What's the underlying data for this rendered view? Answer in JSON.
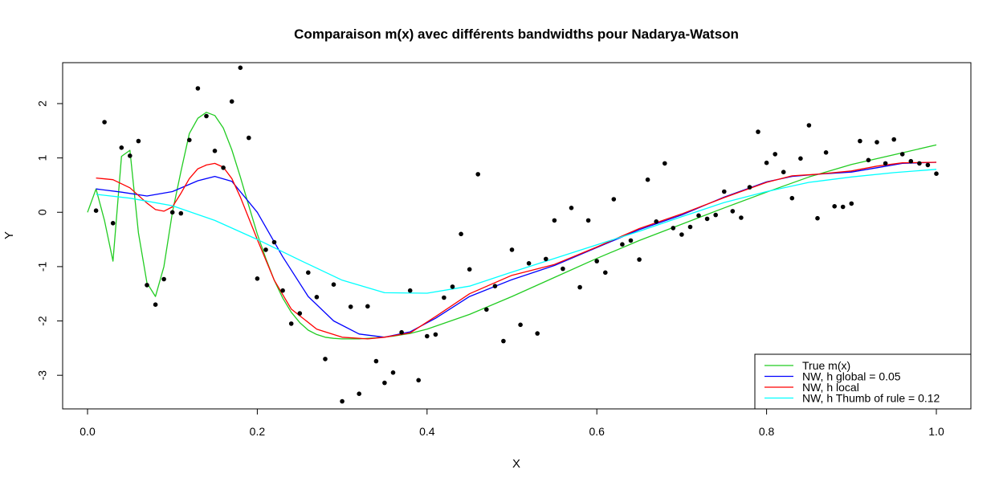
{
  "chart_data": {
    "type": "scatter",
    "title": "Comparaison m(x) avec différents bandwidths pour Nadarya-Watson",
    "xlabel": "X",
    "ylabel": "Y",
    "xlim": [
      0.0,
      1.0
    ],
    "ylim": [
      -3.5,
      2.65
    ],
    "xticks": [
      0.0,
      0.2,
      0.4,
      0.6,
      0.8,
      1.0
    ],
    "xtick_labels": [
      "0.0",
      "0.2",
      "0.4",
      "0.6",
      "0.8",
      "1.0"
    ],
    "yticks": [
      -3,
      -2,
      -1,
      0,
      1,
      2
    ],
    "ytick_labels": [
      "-3",
      "-2",
      "-1",
      "0",
      "1",
      "2"
    ],
    "grid": false,
    "legend_position": "bottom-right",
    "points": {
      "x": [
        0.01,
        0.02,
        0.03,
        0.04,
        0.05,
        0.06,
        0.07,
        0.08,
        0.09,
        0.1,
        0.11,
        0.12,
        0.13,
        0.14,
        0.15,
        0.16,
        0.17,
        0.18,
        0.19,
        0.2,
        0.21,
        0.22,
        0.23,
        0.24,
        0.25,
        0.26,
        0.27,
        0.28,
        0.29,
        0.3,
        0.31,
        0.32,
        0.33,
        0.34,
        0.35,
        0.36,
        0.37,
        0.38,
        0.39,
        0.4,
        0.41,
        0.42,
        0.43,
        0.44,
        0.45,
        0.46,
        0.47,
        0.48,
        0.49,
        0.5,
        0.51,
        0.52,
        0.53,
        0.54,
        0.55,
        0.56,
        0.57,
        0.58,
        0.59,
        0.6,
        0.61,
        0.62,
        0.63,
        0.64,
        0.65,
        0.66,
        0.67,
        0.68,
        0.69,
        0.7,
        0.71,
        0.72,
        0.73,
        0.74,
        0.75,
        0.76,
        0.77,
        0.78,
        0.79,
        0.8,
        0.81,
        0.82,
        0.83,
        0.84,
        0.85,
        0.86,
        0.87,
        0.88,
        0.89,
        0.9,
        0.91,
        0.92,
        0.93,
        0.94,
        0.95,
        0.96,
        0.97,
        0.98,
        0.99,
        1.0
      ],
      "y": [
        0.03,
        1.66,
        -0.2,
        1.19,
        1.04,
        1.31,
        -1.34,
        -1.7,
        -1.23,
        0.0,
        -0.02,
        1.33,
        2.28,
        1.77,
        1.13,
        0.82,
        2.04,
        2.66,
        1.37,
        -1.22,
        -0.69,
        -0.55,
        -1.44,
        -2.05,
        -1.86,
        -1.11,
        -1.56,
        -2.7,
        -1.33,
        -3.48,
        -1.74,
        -3.34,
        -1.73,
        -2.74,
        -3.14,
        -2.95,
        -2.21,
        -1.44,
        -3.09,
        -2.28,
        -2.25,
        -1.57,
        -1.37,
        -0.4,
        -1.05,
        0.7,
        -1.79,
        -1.36,
        -2.37,
        -0.69,
        -2.07,
        -0.94,
        -2.23,
        -0.86,
        -0.15,
        -1.04,
        0.08,
        -1.38,
        -0.15,
        -0.9,
        -1.11,
        0.24,
        -0.59,
        -0.52,
        -0.87,
        0.6,
        -0.17,
        0.9,
        -0.29,
        -0.41,
        -0.27,
        -0.06,
        -0.12,
        -0.05,
        0.38,
        0.02,
        -0.1,
        0.46,
        1.48,
        0.91,
        1.07,
        0.74,
        0.26,
        0.99,
        1.6,
        -0.11,
        1.1,
        0.11,
        0.1,
        0.16,
        1.31,
        0.96,
        1.29,
        0.9,
        1.34,
        1.07,
        0.94,
        0.9,
        0.87,
        0.71
      ]
    },
    "series": [
      {
        "name": "True m(x)",
        "color": "#22cc22",
        "x": [
          0.0,
          0.01,
          0.02,
          0.03,
          0.04,
          0.05,
          0.06,
          0.07,
          0.08,
          0.09,
          0.1,
          0.11,
          0.12,
          0.13,
          0.14,
          0.15,
          0.16,
          0.17,
          0.18,
          0.19,
          0.2,
          0.21,
          0.22,
          0.23,
          0.24,
          0.25,
          0.26,
          0.27,
          0.28,
          0.29,
          0.3,
          0.32,
          0.34,
          0.36,
          0.38,
          0.4,
          0.45,
          0.5,
          0.55,
          0.6,
          0.65,
          0.7,
          0.75,
          0.8,
          0.85,
          0.9,
          0.95,
          1.0
        ],
        "y": [
          0.0,
          0.43,
          -0.15,
          -0.9,
          1.03,
          1.14,
          -0.38,
          -1.3,
          -1.55,
          -1.0,
          0.0,
          0.75,
          1.45,
          1.73,
          1.84,
          1.78,
          1.55,
          1.15,
          0.65,
          0.12,
          -0.4,
          -0.85,
          -1.25,
          -1.58,
          -1.84,
          -2.03,
          -2.17,
          -2.25,
          -2.3,
          -2.32,
          -2.33,
          -2.33,
          -2.31,
          -2.28,
          -2.23,
          -2.15,
          -1.88,
          -1.55,
          -1.2,
          -0.85,
          -0.52,
          -0.22,
          0.08,
          0.37,
          0.65,
          0.88,
          1.06,
          1.24
        ]
      },
      {
        "name": "NW, h global = 0.05",
        "color": "#0000ff",
        "x": [
          0.01,
          0.04,
          0.07,
          0.1,
          0.13,
          0.15,
          0.17,
          0.2,
          0.23,
          0.26,
          0.29,
          0.32,
          0.35,
          0.38,
          0.41,
          0.45,
          0.5,
          0.55,
          0.6,
          0.65,
          0.7,
          0.75,
          0.8,
          0.83,
          0.86,
          0.9,
          0.93,
          0.96,
          1.0
        ],
        "y": [
          0.43,
          0.37,
          0.3,
          0.38,
          0.58,
          0.66,
          0.57,
          0.0,
          -0.82,
          -1.55,
          -2.0,
          -2.24,
          -2.3,
          -2.2,
          -1.95,
          -1.55,
          -1.24,
          -0.98,
          -0.65,
          -0.32,
          -0.05,
          0.28,
          0.56,
          0.66,
          0.7,
          0.74,
          0.82,
          0.9,
          0.92
        ]
      },
      {
        "name": "NW, h local",
        "color": "#ff0000",
        "x": [
          0.01,
          0.03,
          0.05,
          0.07,
          0.08,
          0.09,
          0.1,
          0.11,
          0.12,
          0.13,
          0.14,
          0.15,
          0.16,
          0.17,
          0.18,
          0.2,
          0.22,
          0.24,
          0.27,
          0.3,
          0.33,
          0.35,
          0.38,
          0.41,
          0.45,
          0.5,
          0.55,
          0.6,
          0.65,
          0.7,
          0.75,
          0.8,
          0.83,
          0.86,
          0.9,
          0.93,
          0.96,
          1.0
        ],
        "y": [
          0.63,
          0.6,
          0.45,
          0.17,
          0.05,
          0.02,
          0.1,
          0.35,
          0.62,
          0.8,
          0.87,
          0.9,
          0.83,
          0.62,
          0.28,
          -0.5,
          -1.25,
          -1.78,
          -2.15,
          -2.3,
          -2.33,
          -2.3,
          -2.22,
          -1.92,
          -1.5,
          -1.16,
          -0.96,
          -0.64,
          -0.3,
          -0.03,
          0.27,
          0.55,
          0.67,
          0.7,
          0.76,
          0.85,
          0.91,
          0.92
        ]
      },
      {
        "name": "NW, h Thumb of rule = 0.12",
        "color": "#00ffff",
        "x": [
          0.01,
          0.05,
          0.1,
          0.15,
          0.2,
          0.25,
          0.3,
          0.35,
          0.4,
          0.45,
          0.5,
          0.55,
          0.6,
          0.65,
          0.7,
          0.75,
          0.8,
          0.85,
          0.9,
          0.95,
          1.0
        ],
        "y": [
          0.33,
          0.26,
          0.12,
          -0.15,
          -0.5,
          -0.88,
          -1.25,
          -1.48,
          -1.49,
          -1.36,
          -1.1,
          -0.85,
          -0.6,
          -0.35,
          -0.08,
          0.18,
          0.38,
          0.55,
          0.65,
          0.73,
          0.79
        ]
      }
    ]
  }
}
